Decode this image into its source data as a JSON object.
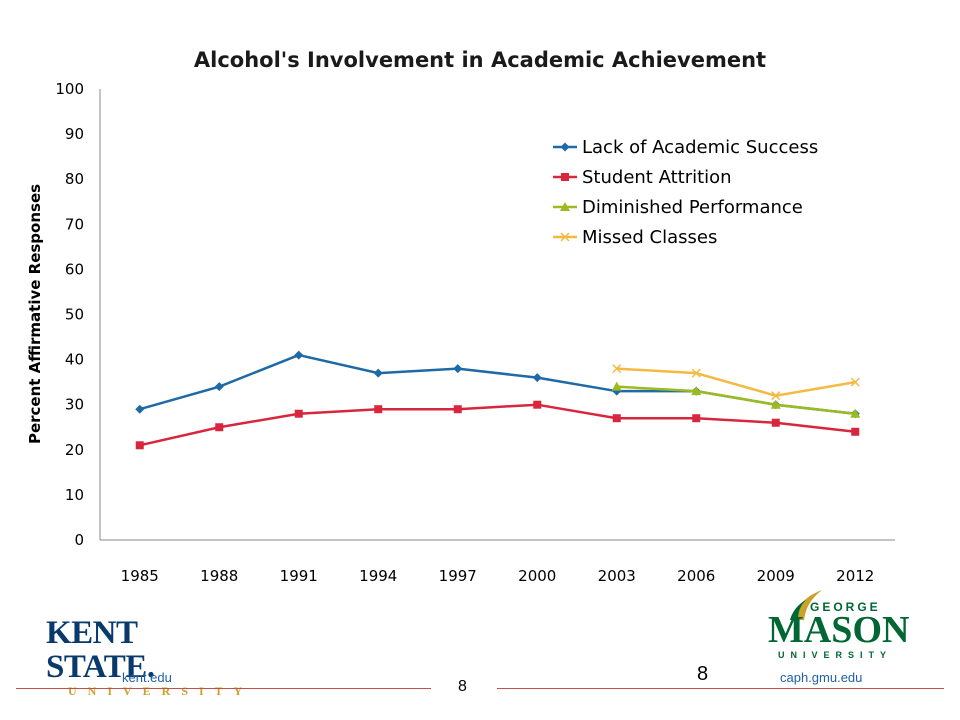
{
  "chart_data": {
    "type": "line",
    "title": "Alcohol's Involvement in Academic Achievement",
    "xlabel": "",
    "ylabel": "Percent Affirmative Responses",
    "categories": [
      "1985",
      "1988",
      "1991",
      "1994",
      "1997",
      "2000",
      "2003",
      "2006",
      "2009",
      "2012"
    ],
    "ylim": [
      0,
      100
    ],
    "yticks": [
      "0",
      "10",
      "20",
      "30",
      "40",
      "50",
      "60",
      "70",
      "80",
      "90",
      "100"
    ],
    "grid": false,
    "legend_position": "top-right",
    "series": [
      {
        "name": "Lack of Academic Success",
        "color": "#1f6aa5",
        "marker": "diamond",
        "values": [
          29,
          34,
          41,
          37,
          38,
          36,
          33,
          33,
          30,
          28
        ]
      },
      {
        "name": "Student Attrition",
        "color": "#d7263d",
        "marker": "square",
        "values": [
          21,
          25,
          28,
          29,
          29,
          30,
          27,
          27,
          26,
          24
        ]
      },
      {
        "name": "Diminished Performance",
        "color": "#9bbb1f",
        "marker": "triangle",
        "values": [
          null,
          null,
          null,
          null,
          null,
          null,
          34,
          33,
          30,
          28
        ]
      },
      {
        "name": "Missed Classes",
        "color": "#f4b942",
        "marker": "x",
        "values": [
          null,
          null,
          null,
          null,
          null,
          null,
          38,
          37,
          32,
          35
        ]
      }
    ]
  },
  "footer": {
    "left_url": "kent.edu",
    "right_url": "caph.gmu.edu",
    "slide_number": "8",
    "slide_number_large": "8",
    "left_logo": {
      "main": "KENT STATE.",
      "sub": "UNIVERSITY",
      "color": "#0a3a6b"
    },
    "right_logo": {
      "top": "GEORGE",
      "main": "MASON",
      "sub": "UNIVERSITY",
      "color": "#006633"
    }
  }
}
